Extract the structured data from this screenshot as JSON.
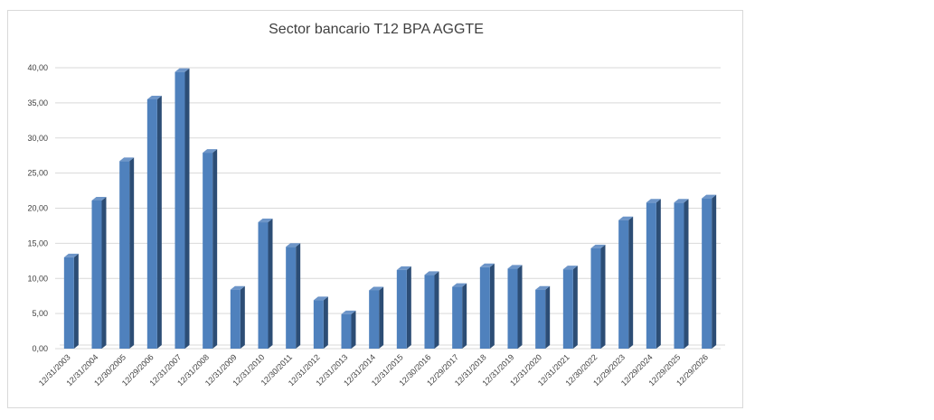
{
  "chart_data": {
    "type": "bar",
    "title": "Sector bancario T12 BPA AGGTE",
    "xlabel": "",
    "ylabel": "",
    "ylim": [
      0,
      40
    ],
    "y_ticks": [
      "0,00",
      "5,00",
      "10,00",
      "15,00",
      "20,00",
      "25,00",
      "30,00",
      "35,00",
      "40,00"
    ],
    "grid": true,
    "legend": "none",
    "bar_style": "3d-column",
    "colors": {
      "bar_front": "#4f81bd",
      "bar_side": "#2c4d75",
      "bar_top": "#6d95c8",
      "grid": "#d9d9d9",
      "text": "#404040"
    },
    "categories": [
      "12/31/2003",
      "12/31/2004",
      "12/30/2005",
      "12/29/2006",
      "12/31/2007",
      "12/31/2008",
      "12/31/2009",
      "12/31/2010",
      "12/30/2011",
      "12/31/2012",
      "12/31/2013",
      "12/31/2014",
      "12/31/2015",
      "12/30/2016",
      "12/29/2017",
      "12/31/2018",
      "12/31/2019",
      "12/31/2020",
      "12/31/2021",
      "12/30/2022",
      "12/29/2023",
      "12/29/2024",
      "12/29/2025",
      "12/29/2026"
    ],
    "series": [
      {
        "values": [
          13.0,
          21.1,
          26.7,
          35.5,
          39.4,
          27.9,
          8.4,
          18.0,
          14.5,
          6.9,
          4.9,
          8.3,
          11.2,
          10.5,
          8.8,
          11.6,
          11.4,
          8.4,
          11.3,
          14.3,
          18.3,
          20.8,
          20.8,
          21.4
        ]
      }
    ]
  }
}
